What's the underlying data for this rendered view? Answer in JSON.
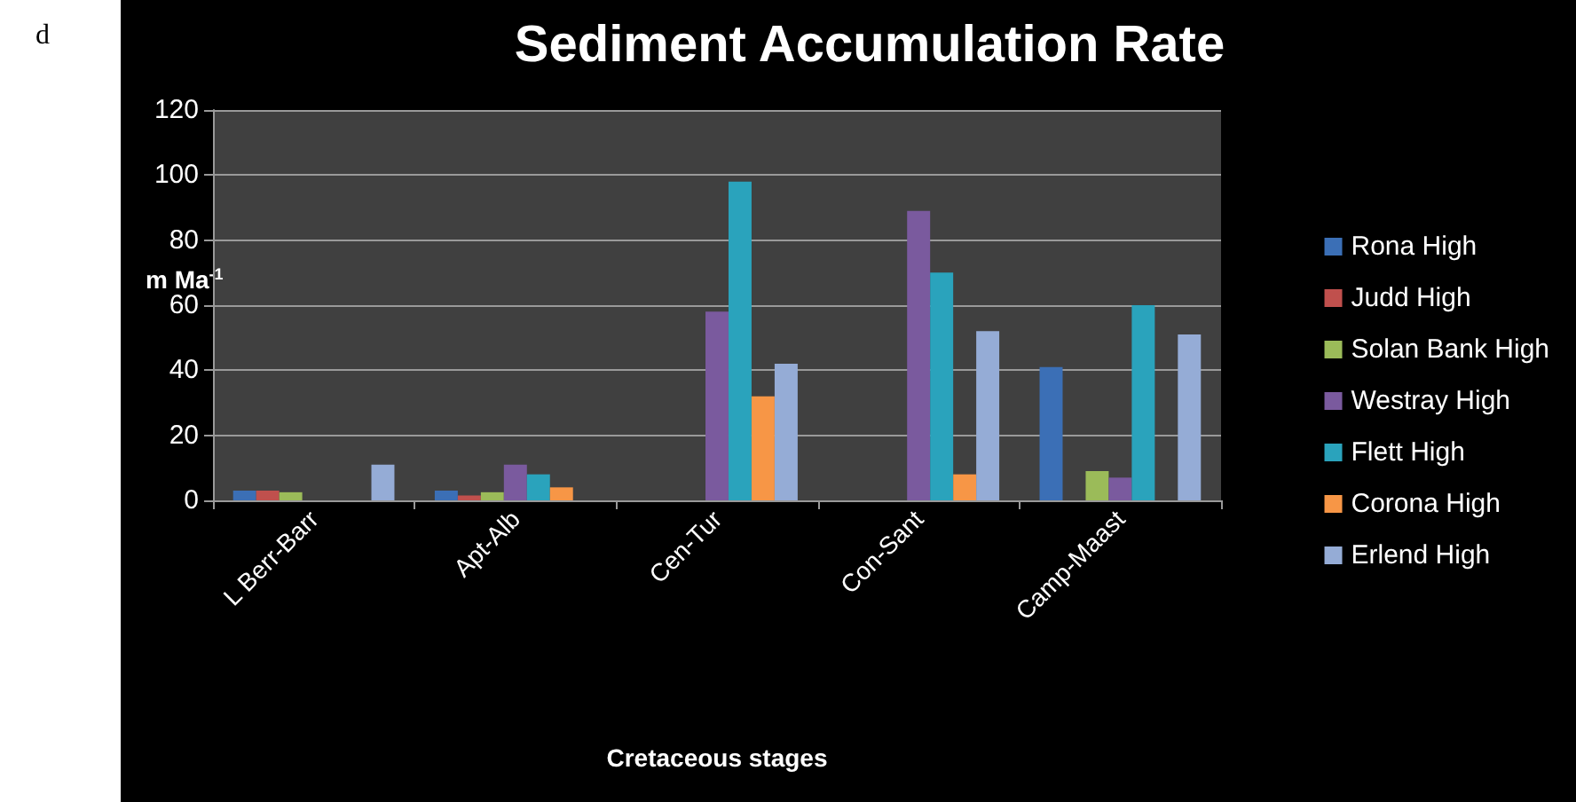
{
  "chart_data": {
    "type": "bar",
    "title": "Sediment Accumulation Rate",
    "xlabel": "Cretaceous stages",
    "ylabel": "m Ma$^{-1}$",
    "annotations": [
      "d"
    ],
    "categories": [
      "L Berr-Barr",
      "Apt-Alb",
      "Cen-Tur",
      "Con-Sant",
      "Camp-Maast"
    ],
    "series": [
      {
        "name": "Rona High",
        "color": "#3b6fb6",
        "values": [
          3,
          3,
          null,
          null,
          41
        ]
      },
      {
        "name": "Judd High",
        "color": "#c0504d",
        "values": [
          3,
          1.5,
          null,
          null,
          null
        ]
      },
      {
        "name": "Solan Bank High",
        "color": "#9bbb59",
        "values": [
          2.5,
          2.5,
          null,
          null,
          9
        ]
      },
      {
        "name": "Westray High",
        "color": "#7a5a9e",
        "values": [
          null,
          11,
          58,
          89,
          7
        ]
      },
      {
        "name": "Flett High",
        "color": "#2aa3bc",
        "values": [
          null,
          8,
          98,
          70,
          60
        ]
      },
      {
        "name": "Corona High",
        "color": "#f79646",
        "values": [
          null,
          4,
          32,
          8,
          null
        ]
      },
      {
        "name": "Erlend High",
        "color": "#95acd6",
        "values": [
          11,
          null,
          42,
          52,
          51
        ]
      }
    ],
    "ylim": [
      0,
      120
    ],
    "yticks": [
      0,
      20,
      40,
      60,
      80,
      100,
      120
    ],
    "grid": "y",
    "legend": "right"
  }
}
